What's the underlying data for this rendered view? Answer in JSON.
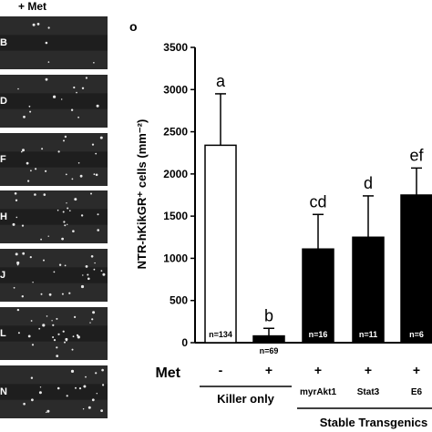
{
  "left_panels": {
    "header": "+ Met",
    "letters": [
      "B",
      "D",
      "F",
      "H",
      "J",
      "L",
      "N"
    ]
  },
  "panel_label": "o",
  "chart_data": {
    "type": "bar",
    "ylabel": "NTR-hKikGR⁺ cells (mm⁻²)",
    "ylim": [
      0,
      3500
    ],
    "yticks": [
      0,
      500,
      1000,
      1500,
      2000,
      2500,
      3000,
      3500
    ],
    "bars": [
      {
        "value": 2340,
        "error": 610,
        "fill": "#ffffff",
        "letter": "a",
        "n_label": "n=134",
        "n_pos": "inside",
        "met": "-"
      },
      {
        "value": 80,
        "error": 90,
        "fill": "#000000",
        "letter": "b",
        "n_label": "n=69",
        "n_pos": "below",
        "met": "+"
      },
      {
        "value": 1110,
        "error": 410,
        "fill": "#000000",
        "letter": "cd",
        "n_label": "n=16",
        "n_pos": "inside",
        "met": "+"
      },
      {
        "value": 1250,
        "error": 490,
        "fill": "#000000",
        "letter": "d",
        "n_label": "n=11",
        "n_pos": "inside",
        "met": "+"
      },
      {
        "value": 1750,
        "error": 320,
        "fill": "#000000",
        "letter": "ef",
        "n_label": "n=6",
        "n_pos": "inside",
        "met": "+"
      }
    ],
    "met_row_label": "Met",
    "groups": [
      {
        "label": "Killer only",
        "bars": [
          0,
          1
        ]
      },
      {
        "label": "Stable Transgenics",
        "bars": [
          2,
          3,
          4
        ]
      }
    ],
    "sub_labels": [
      "",
      "",
      "myrAkt1",
      "Stat3",
      "E6"
    ]
  },
  "colors": {
    "panel_bg": "#2b2b2b",
    "bar_black": "#000000",
    "bar_white": "#ffffff"
  }
}
